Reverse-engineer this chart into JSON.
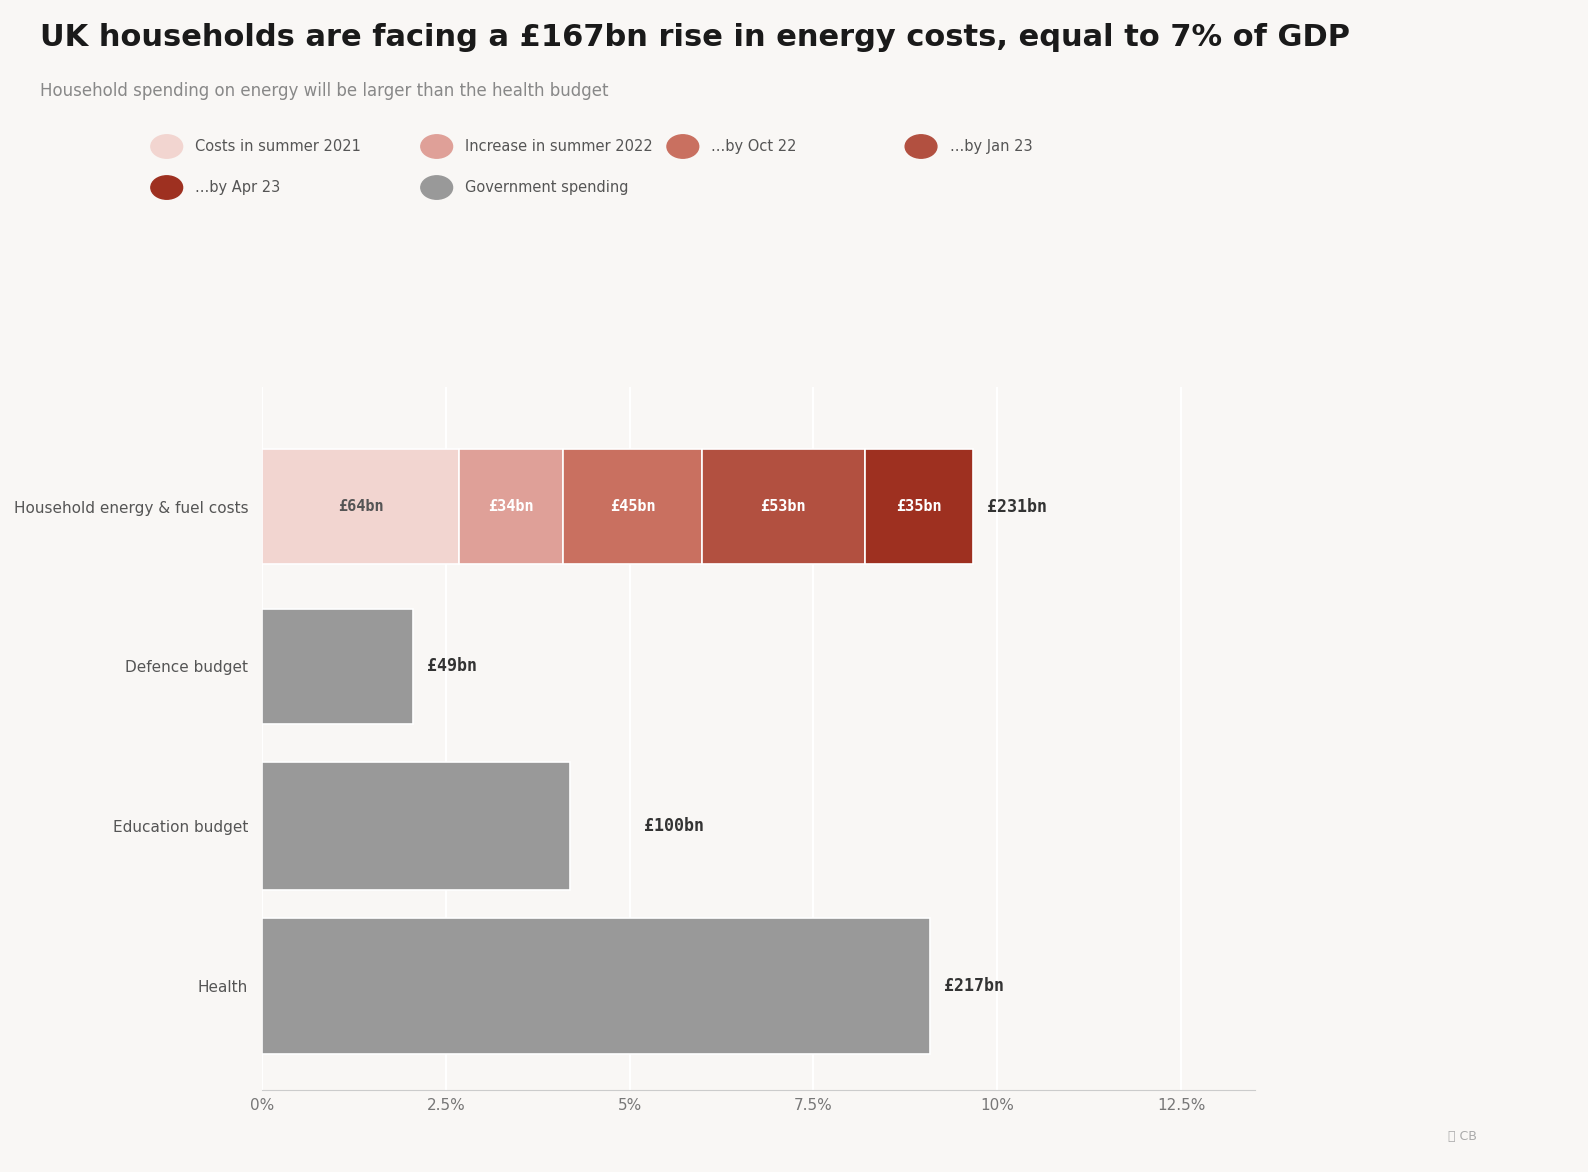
{
  "title": "UK households are facing a £167bn rise in energy costs, equal to 7% of GDP",
  "subtitle": "Household spending on energy will be larger than the health budget",
  "background_color": "#f9f7f5",
  "GDP_bn": 2390,
  "bars": [
    {
      "label": "Household energy & fuel costs",
      "segments": [
        {
          "value_bn": 64,
          "color": "#f2d5d0",
          "text_color": "#555555"
        },
        {
          "value_bn": 34,
          "color": "#dfa098",
          "text_color": "#ffffff"
        },
        {
          "value_bn": 45,
          "color": "#c97060",
          "text_color": "#ffffff"
        },
        {
          "value_bn": 53,
          "color": "#b25040",
          "text_color": "#ffffff"
        },
        {
          "value_bn": 35,
          "color": "#9e3020",
          "text_color": "#ffffff"
        }
      ],
      "total_label": "£231bn",
      "total_bn": 231,
      "show_labels_inside": true
    },
    {
      "label": "Defence budget",
      "segments": [
        {
          "value_bn": 49,
          "color": "#999999",
          "text_color": "#333333"
        }
      ],
      "total_label": "£49bn",
      "total_bn": 49,
      "show_labels_inside": false
    },
    {
      "label": "Education budget",
      "segments": [
        {
          "value_bn": 100,
          "color": "#999999",
          "text_color": "#333333"
        }
      ],
      "total_label": "£100bn",
      "total_bn": 100,
      "show_labels_inside": false
    },
    {
      "label": "Health",
      "segments": [
        {
          "value_bn": 217,
          "color": "#999999",
          "text_color": "#333333"
        }
      ],
      "total_label": "£217bn",
      "total_bn": 217,
      "show_labels_inside": false
    }
  ],
  "legend_items": [
    {
      "label": "Costs in summer 2021",
      "color": "#f2d5d0"
    },
    {
      "label": "Increase in summer 2022",
      "color": "#dfa098"
    },
    {
      "label": "...by Oct 22",
      "color": "#c97060"
    },
    {
      "label": "...by Jan 23",
      "color": "#b25040"
    },
    {
      "label": "...by Apr 23",
      "color": "#9e3020"
    },
    {
      "label": "Government spending",
      "color": "#999999"
    }
  ],
  "xticks": [
    0,
    2.5,
    5.0,
    7.5,
    10.0,
    12.5
  ],
  "xlim_max": 13.5,
  "title_fontsize": 22,
  "subtitle_fontsize": 12,
  "label_fontsize": 11,
  "tick_fontsize": 11
}
